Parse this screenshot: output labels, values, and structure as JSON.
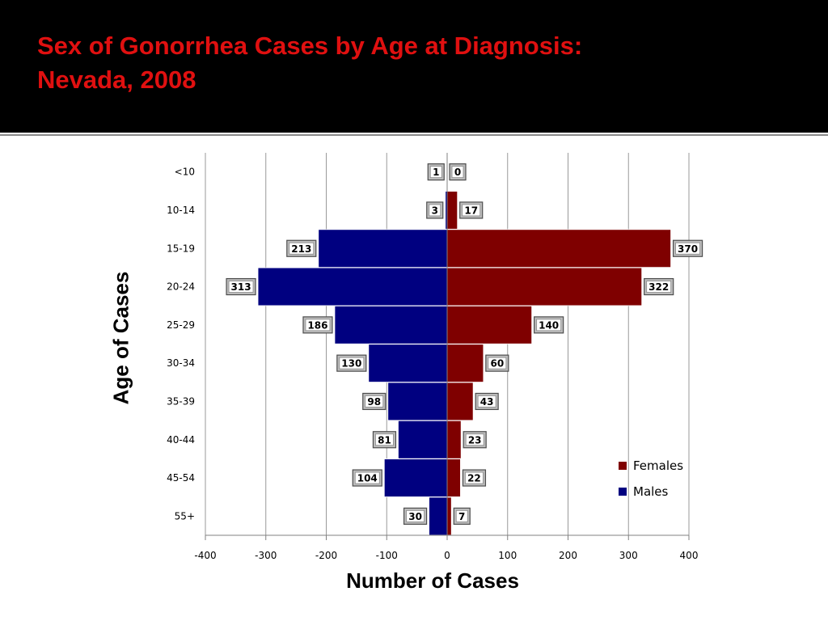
{
  "slide": {
    "title_line1": "Sex of Gonorrhea Cases by Age at Diagnosis:",
    "title_line2": "Nevada, 2008"
  },
  "colors": {
    "females": "#7f0000",
    "males": "#000080",
    "title": "#e01010"
  },
  "chart_data": {
    "type": "bar",
    "orientation": "horizontal",
    "categories": [
      "<10",
      "10-14",
      "15-19",
      "20-24",
      "25-29",
      "30-34",
      "35-39",
      "40-44",
      "45-54",
      "55+"
    ],
    "series": [
      {
        "name": "Females",
        "values": [
          0,
          17,
          370,
          322,
          140,
          60,
          43,
          23,
          22,
          7
        ]
      },
      {
        "name": "Males",
        "values": [
          1,
          3,
          213,
          313,
          186,
          130,
          98,
          81,
          104,
          30
        ]
      }
    ],
    "xlabel": "Number of Cases",
    "ylabel": "Age of Cases",
    "xlim": [
      -400,
      400
    ],
    "xticks": [
      -400,
      -300,
      -200,
      -100,
      0,
      100,
      200,
      300,
      400
    ],
    "grid": true,
    "legend": "right"
  }
}
